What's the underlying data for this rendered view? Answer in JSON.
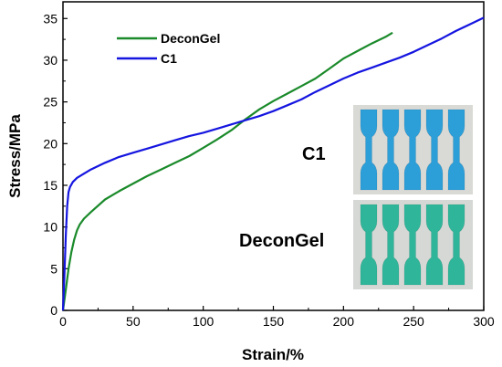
{
  "chart_data": {
    "type": "line",
    "xlabel": "Strain/%",
    "ylabel": "Stress/MPa",
    "xlim": [
      0,
      300
    ],
    "ylim": [
      0,
      37
    ],
    "xticks": [
      0,
      50,
      100,
      150,
      200,
      250,
      300
    ],
    "yticks": [
      0,
      5,
      10,
      15,
      20,
      25,
      30,
      35
    ],
    "grid": false,
    "legend_position": "top-left",
    "series": [
      {
        "name": "DeconGel",
        "color": "#1a8a2a",
        "x": [
          0,
          2,
          4,
          6,
          8,
          10,
          12,
          15,
          20,
          30,
          40,
          50,
          60,
          70,
          80,
          90,
          100,
          110,
          120,
          130,
          140,
          150,
          160,
          170,
          180,
          190,
          200,
          210,
          220,
          230,
          235
        ],
        "y": [
          0,
          2.5,
          5,
          7,
          8.5,
          9.6,
          10.3,
          11,
          11.8,
          13.3,
          14.3,
          15.2,
          16.1,
          16.9,
          17.7,
          18.5,
          19.5,
          20.5,
          21.6,
          22.9,
          24.1,
          25.1,
          26.0,
          26.9,
          27.8,
          29.0,
          30.2,
          31.1,
          32.0,
          32.8,
          33.3
        ]
      },
      {
        "name": "C1",
        "color": "#1515e0",
        "x": [
          0,
          1,
          2,
          3,
          4,
          5,
          7,
          10,
          15,
          20,
          30,
          40,
          50,
          60,
          70,
          80,
          90,
          100,
          110,
          120,
          130,
          140,
          150,
          160,
          170,
          180,
          190,
          200,
          210,
          220,
          230,
          240,
          250,
          260,
          270,
          280,
          290,
          300
        ],
        "y": [
          0,
          4,
          9,
          12.5,
          14.2,
          14.8,
          15.4,
          15.9,
          16.4,
          16.9,
          17.7,
          18.4,
          18.9,
          19.4,
          19.9,
          20.4,
          20.9,
          21.3,
          21.8,
          22.3,
          22.8,
          23.3,
          23.9,
          24.6,
          25.3,
          26.2,
          27.0,
          27.8,
          28.5,
          29.1,
          29.7,
          30.3,
          31.0,
          31.8,
          32.6,
          33.5,
          34.3,
          35.1
        ]
      }
    ]
  },
  "photos": [
    {
      "label": "C1",
      "color": "#2c9fd8"
    },
    {
      "label": "DeconGel",
      "color": "#2fb69a"
    }
  ]
}
